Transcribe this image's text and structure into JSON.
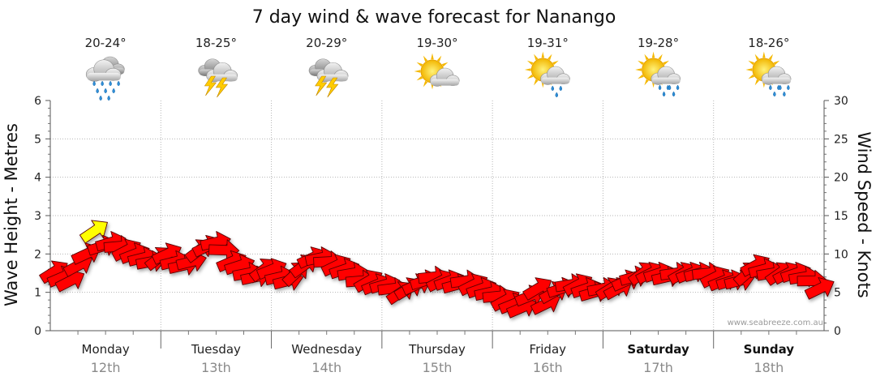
{
  "chart_data": {
    "type": "line",
    "title": "7 day wind & wave forecast for Nanango",
    "y_left_label": "Wave Height - Metres",
    "y_right_label": "Wind Speed - Knots",
    "y_left_range": [
      0,
      6
    ],
    "y_left_ticks": [
      "0",
      "1",
      "2",
      "3",
      "4",
      "5",
      "6"
    ],
    "y_right_range": [
      0,
      30
    ],
    "y_right_ticks": [
      "0",
      "5",
      "10",
      "15",
      "20",
      "25",
      "30"
    ],
    "grid": true,
    "credit": "www.seabreeze.com.au",
    "days": [
      {
        "day": "Monday",
        "date": "12th",
        "temp": "20-24°",
        "weather": "rain-cloud-icon",
        "bold": false
      },
      {
        "day": "Tuesday",
        "date": "13th",
        "temp": "18-25°",
        "weather": "storm-cloud-icon",
        "bold": false
      },
      {
        "day": "Wednesday",
        "date": "14th",
        "temp": "20-29°",
        "weather": "storm-cloud-icon",
        "bold": false
      },
      {
        "day": "Thursday",
        "date": "15th",
        "temp": "19-30°",
        "weather": "sun-cloud-icon",
        "bold": false
      },
      {
        "day": "Friday",
        "date": "16th",
        "temp": "19-31°",
        "weather": "sun-cloud-shower-icon",
        "bold": false
      },
      {
        "day": "Saturday",
        "date": "17th",
        "temp": "19-28°",
        "weather": "sun-rain-cloud-icon",
        "bold": true
      },
      {
        "day": "Sunday",
        "date": "18th",
        "temp": "18-26°",
        "weather": "sun-rain-cloud-icon",
        "bold": true
      }
    ],
    "series": [
      {
        "name": "Wind Speed",
        "unit": "knots",
        "values": [
          7.7,
          7.0,
          6.5,
          8.5,
          10.0,
          13.0,
          11.0,
          11.5,
          11.0,
          10.5,
          10.0,
          9.5,
          9.0,
          9.5,
          10.0,
          9.0,
          8.5,
          9.0,
          10.5,
          11.0,
          11.5,
          10.5,
          9.0,
          8.5,
          7.5,
          7.0,
          8.0,
          8.0,
          7.0,
          6.5,
          7.5,
          8.5,
          9.5,
          9.5,
          9.0,
          8.5,
          8.0,
          7.5,
          6.5,
          6.5,
          6.0,
          6.0,
          5.5,
          5.0,
          5.5,
          6.0,
          6.5,
          7.0,
          6.5,
          6.5,
          6.0,
          6.5,
          6.0,
          5.5,
          5.0,
          4.5,
          4.0,
          3.5,
          3.0,
          4.5,
          5.5,
          3.5,
          5.0,
          5.5,
          6.0,
          6.0,
          5.5,
          5.0,
          5.5,
          5.5,
          5.5,
          6.5,
          7.0,
          7.5,
          7.5,
          7.5,
          7.0,
          7.5,
          7.5,
          7.5,
          7.5,
          7.5,
          7.0,
          6.5,
          6.5,
          6.5,
          7.5,
          8.5,
          8.0,
          7.5,
          7.5,
          7.5,
          7.5,
          7.0,
          6.5,
          5.5
        ],
        "highlight": [
          {
            "index": 5,
            "color": "#ffff00"
          }
        ],
        "color": "#ff0000"
      }
    ]
  }
}
